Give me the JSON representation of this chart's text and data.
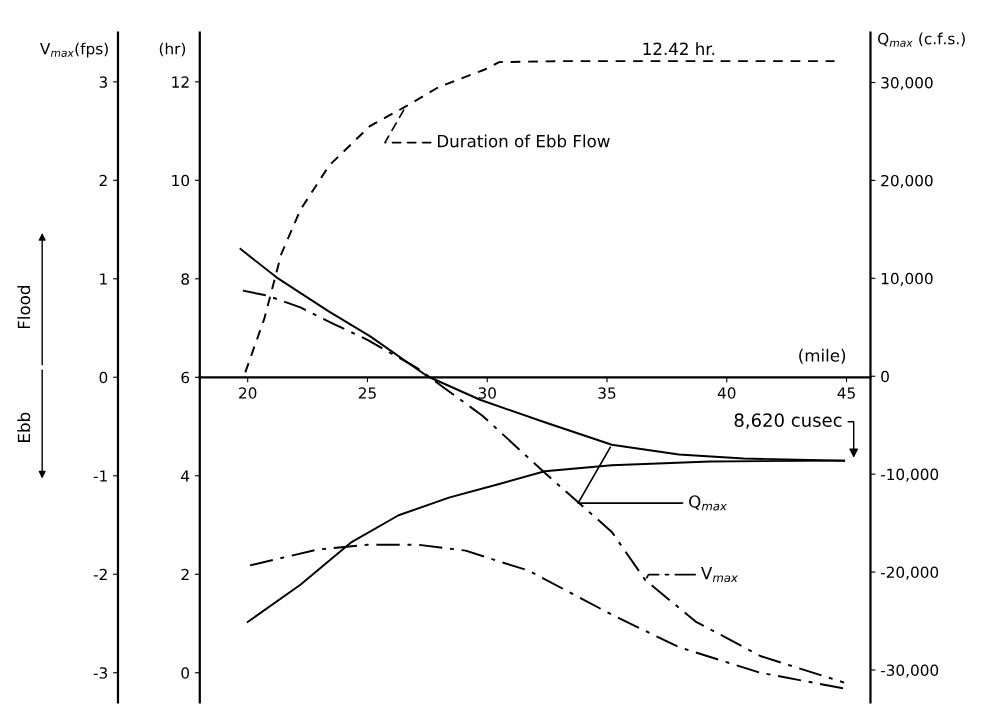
{
  "chart_data": {
    "type": "line",
    "xlabel": "(mile)",
    "ylabel": "(hr)",
    "y2label": "Q$_{max}$ (c.f.s.)",
    "y3label": "V$_{max}$(fps)",
    "xlim": [
      18,
      46
    ],
    "xticks": [
      20,
      25,
      30,
      35,
      40,
      45
    ],
    "ylim": [
      -0.6,
      13
    ],
    "yticks": [
      0,
      2,
      4,
      6,
      8,
      10,
      12
    ],
    "y2lim": [
      -33300,
      35100
    ],
    "y2ticks": [
      {
        "value": -30000,
        "label": "-30,000"
      },
      {
        "value": -20000,
        "label": "-20,000"
      },
      {
        "value": -10000,
        "label": "-10,000"
      },
      0,
      {
        "value": 10000,
        "label": "10,000"
      },
      {
        "value": 20000,
        "label": "20,000"
      },
      {
        "value": 30000,
        "label": "30,000"
      }
    ],
    "y3lim": [
      -3.3,
      3.5
    ],
    "y3ticks": [
      -3,
      -2,
      -1,
      0,
      1,
      2,
      3
    ],
    "series": [
      {
        "name": "Duration of Ebb Flow",
        "color": "#000000",
        "line_style": "dashed",
        "x": [
          19.9,
          20.7,
          21.4,
          22.2,
          23.4,
          25.1,
          26.6,
          28.0,
          29.9,
          30.5,
          33.0,
          44.5
        ],
        "values": [
          6.1,
          7.2,
          8.5,
          9.4,
          10.3,
          11.1,
          11.5,
          11.9,
          12.25,
          12.4,
          12.42,
          12.42
        ]
      },
      {
        "name": "Q$_{max}$",
        "color": "#000000",
        "line_style": "solid",
        "axis": "y2",
        "x": [
          19.7,
          21.2,
          23.4,
          25.1,
          27.5,
          29.7,
          32.4,
          35.2,
          38.0,
          40.7,
          44.9
        ],
        "values": [
          13000,
          10100,
          6600,
          4100,
          0,
          -2400,
          -4700,
          -7000,
          -8000,
          -8400,
          -8620
        ]
      },
      {
        "color": "#000000",
        "line_style": "solid",
        "axis": "y2",
        "x": [
          20.0,
          22.2,
          24.3,
          26.3,
          28.4,
          30.5,
          32.4,
          35.2,
          39.3,
          44.9
        ],
        "values": [
          -25100,
          -21300,
          -17000,
          -14200,
          -12400,
          -11000,
          -9700,
          -9100,
          -8700,
          -8620
        ]
      },
      {
        "name": "V$_{max}$",
        "color": "#000000",
        "line_style": "dashdot",
        "axis": "y3",
        "x": [
          19.8,
          20.8,
          22.2,
          23.6,
          25.0,
          27.1,
          27.6,
          29.8,
          32.4,
          35.2,
          36.6,
          38.7,
          41.4,
          44.9
        ],
        "values": [
          0.88,
          0.83,
          0.71,
          0.54,
          0.38,
          0.09,
          0,
          -0.39,
          -0.97,
          -1.57,
          -2.06,
          -2.48,
          -2.83,
          -3.1
        ]
      },
      {
        "color": "#000000",
        "line_style": "dashdot",
        "axis": "y3",
        "x": [
          20.1,
          22.9,
          25.0,
          27.1,
          29.1,
          30.5,
          31.7,
          35.2,
          38.0,
          41.4,
          44.9
        ],
        "values": [
          -1.91,
          -1.75,
          -1.7,
          -1.7,
          -1.76,
          -1.87,
          -1.96,
          -2.41,
          -2.74,
          -3.0,
          -3.16
        ]
      }
    ],
    "annotations": [
      {
        "text": "12.42 hr.",
        "x": 38,
        "y": 12.42
      },
      "8,620 cusec",
      "Flood",
      "Ebb"
    ]
  }
}
